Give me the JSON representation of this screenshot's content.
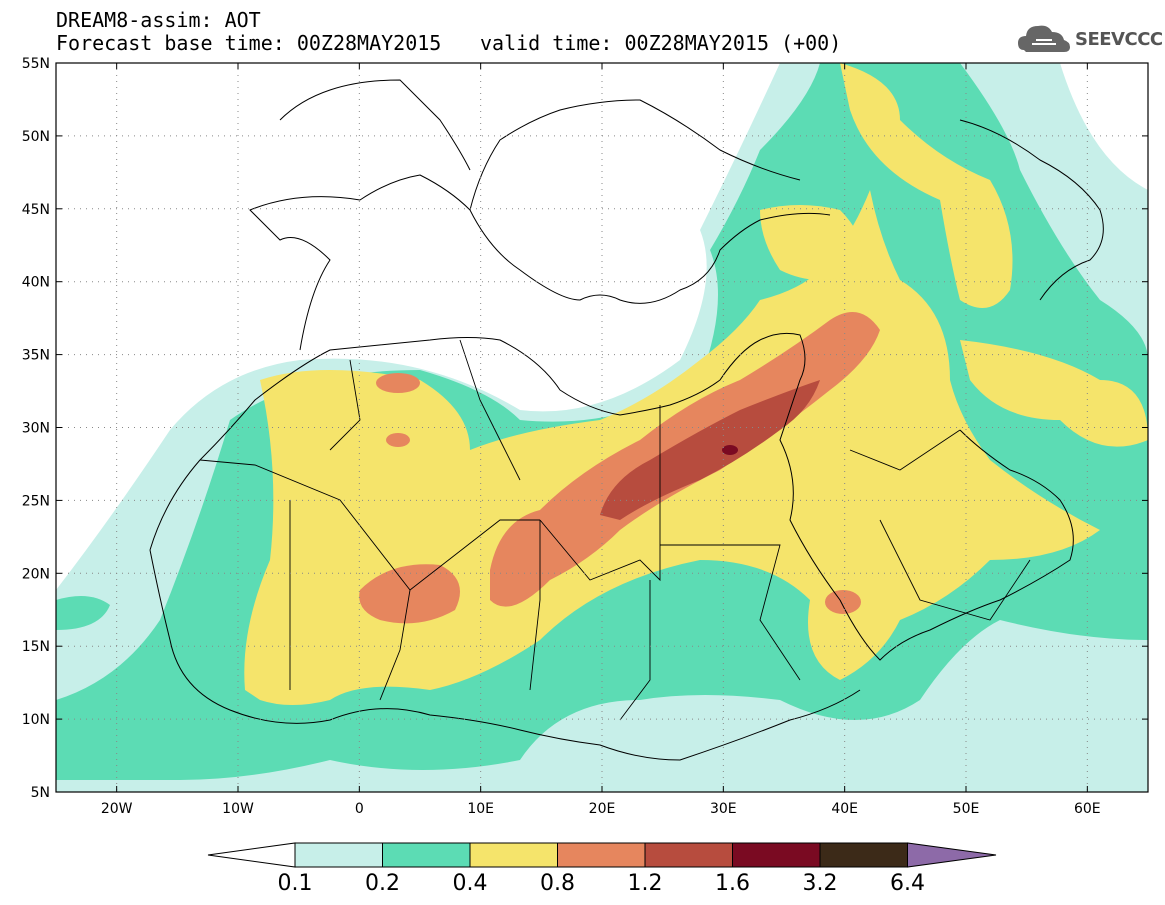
{
  "title": {
    "line1": "DREAM8-assim: AOT",
    "line2": "Forecast base time: 00Z28MAY2015",
    "valid": "valid time: 00Z28MAY2015 (+00)"
  },
  "logo": {
    "text": "SEEVCCC",
    "icon": "cloud-icon"
  },
  "map": {
    "lon_range": [
      -25,
      65
    ],
    "lat_range": [
      5,
      55
    ],
    "lat_ticks": [
      "55N",
      "50N",
      "45N",
      "40N",
      "35N",
      "30N",
      "25N",
      "20N",
      "15N",
      "10N",
      "5N"
    ],
    "lon_ticks": [
      "20W",
      "10W",
      "0",
      "10E",
      "20E",
      "30E",
      "40E",
      "50E",
      "60E"
    ],
    "variable": "AOT"
  },
  "colorbar": {
    "labels": [
      "0.1",
      "0.2",
      "0.4",
      "0.8",
      "1.2",
      "1.6",
      "3.2",
      "6.4"
    ],
    "colors": [
      "#ffffff",
      "#c7efe9",
      "#5cdcb4",
      "#f5e46b",
      "#e6865e",
      "#b74c3e",
      "#7a0a22",
      "#3c2a18",
      "#8d6aa8"
    ]
  }
}
